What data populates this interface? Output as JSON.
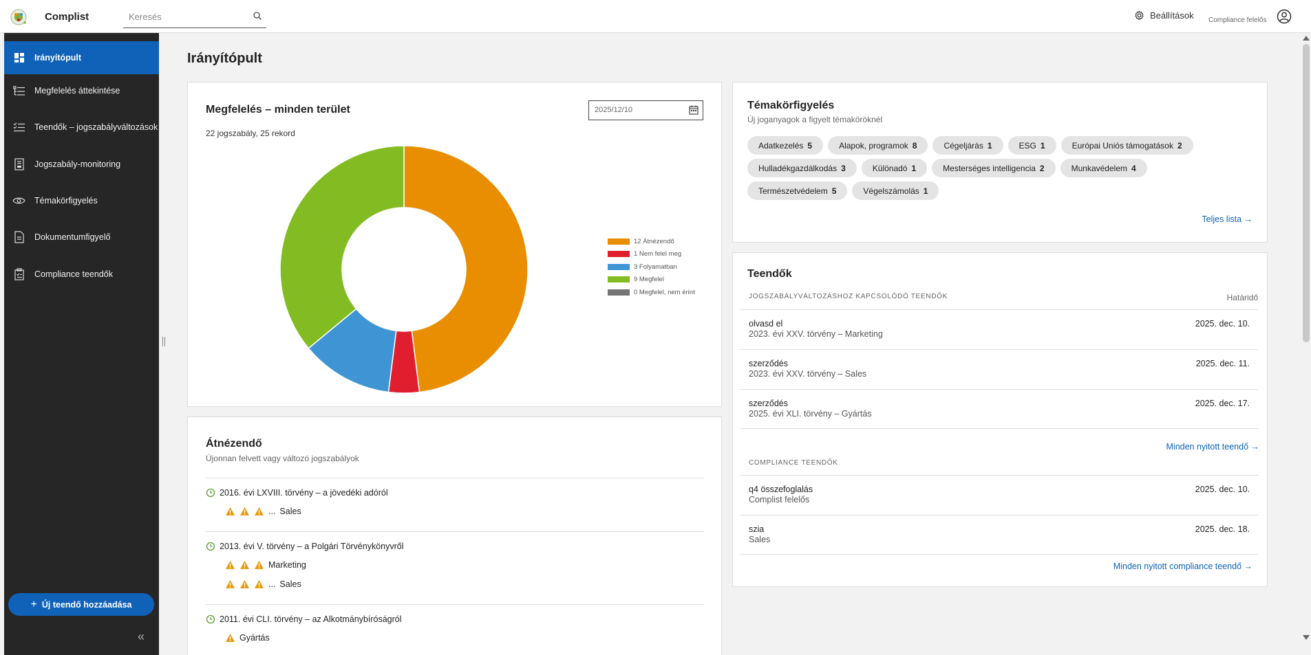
{
  "app": {
    "name": "Complist"
  },
  "search": {
    "placeholder": "Keresés"
  },
  "header": {
    "settings_label": "Beállítások",
    "role": "Compliance felelős"
  },
  "sidebar": {
    "items": [
      {
        "label": "Irányítópult",
        "icon": "dashboard-icon",
        "active": true
      },
      {
        "label": "Megfelelés áttekintése",
        "icon": "list-icon"
      },
      {
        "label": "Teendők – jogszabályváltozások",
        "icon": "checklist-icon"
      },
      {
        "label": "Jogszabály-monitoring",
        "icon": "document-stack-icon"
      },
      {
        "label": "Témakörfigyelés",
        "icon": "eye-icon"
      },
      {
        "label": "Dokumentumfigyelő",
        "icon": "document-icon"
      },
      {
        "label": "Compliance teendők",
        "icon": "clipboard-icon"
      }
    ],
    "add_button": "Új teendő hozzáadása"
  },
  "page": {
    "title": "Irányítópult"
  },
  "compliance": {
    "title": "Megfelelés – minden terület",
    "summary": "22 jogszabály, 25 rekord",
    "date": "2025/12/10"
  },
  "chart_data": {
    "type": "pie",
    "categories": [
      "Átnézendő",
      "Nem felel meg",
      "Folyamatban",
      "Megfelel",
      "Megfelel, nem érint"
    ],
    "values": [
      12,
      1,
      3,
      9,
      0
    ],
    "colors": [
      "#e88e00",
      "#e01e2e",
      "#3f95d3",
      "#83bc22",
      "#757575"
    ],
    "legend_labels": [
      "12 Átnézendő",
      "1 Nem felel meg",
      "3 Folyamatban",
      "9 Megfelel",
      "0 Megfelel, nem érint"
    ],
    "legend": "right",
    "donut": true
  },
  "atnezendo": {
    "title": "Átnézendő",
    "subtitle": "Újonnan felvett vagy változó jogszabályok",
    "items": [
      {
        "title": "2016. évi LXVIII. törvény – a jövedéki adóról",
        "rows": [
          {
            "warnings": 3,
            "ellipsis": "...",
            "label": "Sales"
          }
        ]
      },
      {
        "title": "2013. évi V. törvény – a Polgári Törvénykönyvről",
        "rows": [
          {
            "warnings": 3,
            "label": "Marketing"
          },
          {
            "warnings": 3,
            "ellipsis": "...",
            "label": "Sales"
          }
        ]
      },
      {
        "title": "2011. évi CLI. törvény – az Alkotmánybíróságról",
        "rows": [
          {
            "warnings": 1,
            "label": "Gyártás"
          }
        ]
      }
    ]
  },
  "topics": {
    "title": "Témakörfigyelés",
    "subtitle": "Új joganyagok a figyelt témaköröknél",
    "chips": [
      {
        "label": "Adatkezelés",
        "count": "5"
      },
      {
        "label": "Alapok, programok",
        "count": "8"
      },
      {
        "label": "Cégeljárás",
        "count": "1"
      },
      {
        "label": "ESG",
        "count": "1"
      },
      {
        "label": "Európai Uniós támogatások",
        "count": "2"
      },
      {
        "label": "Hulladékgazdálkodás",
        "count": "3"
      },
      {
        "label": "Különadó",
        "count": "1"
      },
      {
        "label": "Mesterséges intelligencia",
        "count": "2"
      },
      {
        "label": "Munkavédelem",
        "count": "4"
      },
      {
        "label": "Természetvédelem",
        "count": "5"
      },
      {
        "label": "Végelszámolás",
        "count": "1"
      }
    ],
    "link": "Teljes lista →"
  },
  "todos": {
    "title": "Teendők",
    "law_section": "Jogszabályváltozáshoz kapcsolódó teendők",
    "deadline_header": "Határidő",
    "law_items": [
      {
        "name": "olvasd el",
        "sub": "2023. évi XXV. törvény – Marketing",
        "date": "2025. dec. 10."
      },
      {
        "name": "szerződés",
        "sub": "2023. évi XXV. törvény – Sales",
        "date": "2025. dec. 11."
      },
      {
        "name": "szerződés",
        "sub": "2025. évi XLI. törvény – Gyártás",
        "date": "2025. dec. 17."
      }
    ],
    "law_link": "Minden nyitott teendő →",
    "compliance_section": "Compliance teendők",
    "compliance_items": [
      {
        "name": "q4 összefoglalás",
        "sub": "Complist felelős",
        "date": "2025. dec. 10."
      },
      {
        "name": "szia",
        "sub": "Sales",
        "date": "2025. dec. 18."
      }
    ],
    "compliance_link": "Minden nyitott compliance teendő →"
  },
  "colors": {
    "accent": "#0f62b8",
    "sidebar_bg": "#262626",
    "warning": "#e89a0c"
  }
}
